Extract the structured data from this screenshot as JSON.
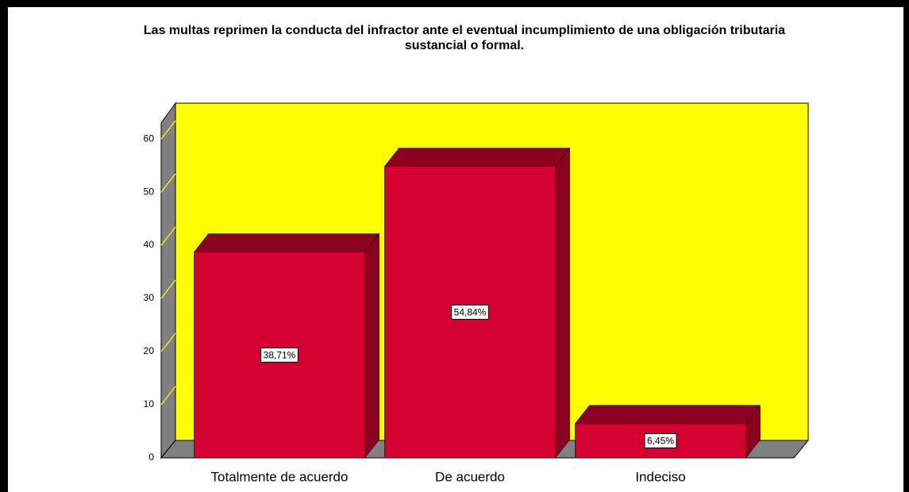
{
  "chart_data": {
    "type": "bar3d",
    "title": "Las multas reprimen la conducta del infractor ante el eventual incumplimiento de una obligación tributaria",
    "subtitle": "sustancial o formal.",
    "categories": [
      "Totalmente de acuerdo",
      "De acuerdo",
      "Indeciso"
    ],
    "values": [
      38.71,
      54.84,
      6.45
    ],
    "value_labels": [
      "38,71%",
      "54,84%",
      "6,45%"
    ],
    "color": "#d4002f",
    "ylim": [
      0,
      63
    ],
    "yticks": [
      0,
      10,
      20,
      30,
      40,
      50,
      60
    ],
    "grid": true
  }
}
